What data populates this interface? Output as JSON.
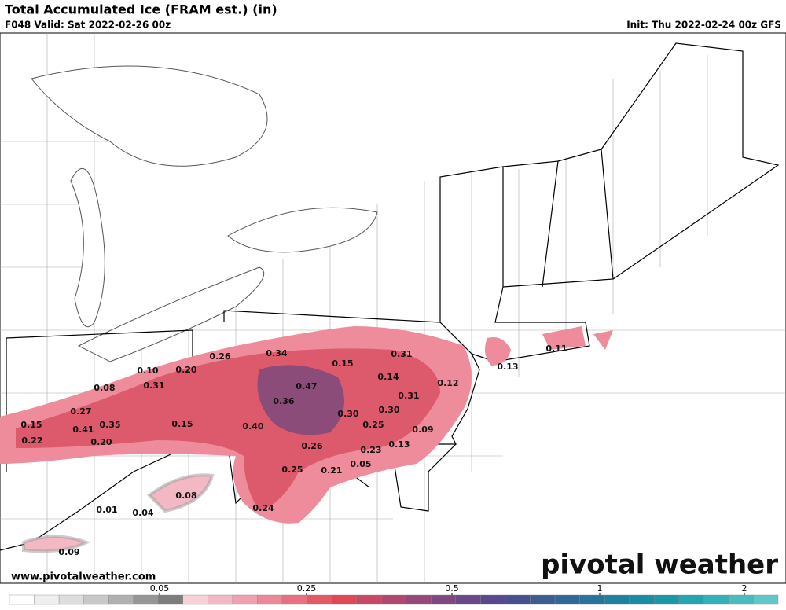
{
  "header": {
    "title": "Total Accumulated Ice (FRAM est.) (in)",
    "valid": "F048 Valid: Sat 2022-02-26 00z",
    "init": "Init: Thu 2022-02-24 00z GFS"
  },
  "map": {
    "labels": [
      "0.26",
      "0.34",
      "0.20",
      "0.10",
      "0.08",
      "0.31",
      "0.27",
      "0.15",
      "0.41",
      "0.35",
      "0.22",
      "0.20",
      "0.15",
      "0.47",
      "0.36",
      "0.40",
      "0.15",
      "0.31",
      "0.14",
      "0.12",
      "0.31",
      "0.30",
      "0.30",
      "0.25",
      "0.09",
      "0.13",
      "0.11",
      "0.26",
      "0.23",
      "0.13",
      "0.25",
      "0.21",
      "0.05",
      "0.08",
      "0.24",
      "0.01",
      "0.04",
      "0.09"
    ]
  },
  "footer": {
    "website": "www.pivotalweather.com",
    "brand": "pivotal weather"
  },
  "colorbar": {
    "colors": [
      "#ffffff",
      "#eeeeee",
      "#dddddd",
      "#c8c8c8",
      "#b0b0b0",
      "#969696",
      "#7d7d7d",
      "#f8d0d8",
      "#f4b8c4",
      "#f0a0b0",
      "#ec8898",
      "#e87080",
      "#e45868",
      "#e04858",
      "#c84868",
      "#b04870",
      "#984878",
      "#804880",
      "#684888",
      "#584890",
      "#485090",
      "#3c5c94",
      "#306898",
      "#28749c",
      "#2080a0",
      "#1c8ca4",
      "#1898a8",
      "#24a4b0",
      "#34b0b8",
      "#48bcc0",
      "#60c8c8"
    ],
    "ticks": [
      0.05,
      0.25,
      0.5,
      1,
      2
    ]
  }
}
